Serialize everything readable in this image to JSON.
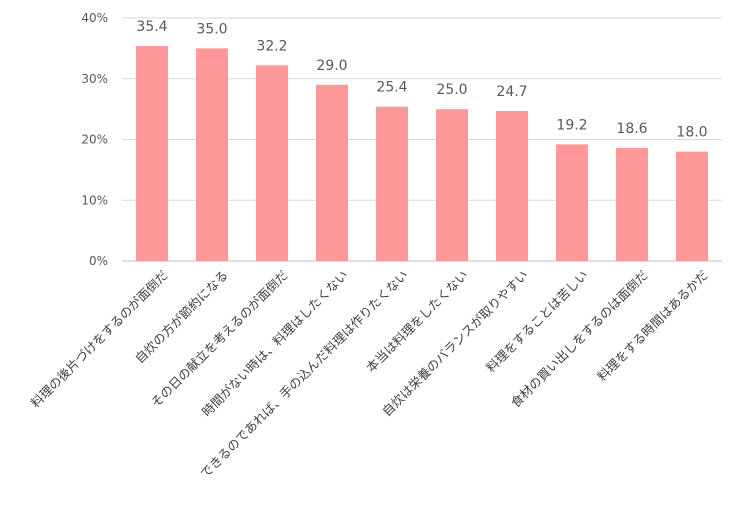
{
  "chart_data": {
    "type": "bar",
    "categories": [
      "料理の後片づけをするのが面倒だ",
      "自炊の方が節約になる",
      "その日の献立を考えるのが面倒だ",
      "時間がない時は、料理はしたくない",
      "できるのであれば、手の込んだ料理は作りたくない",
      "本当は料理をしたくない",
      "自炊は栄養のバランスが取りやすい",
      "料理をすることは苦しい",
      "食材の買い出しをするのは面倒だ",
      "料理をする時間はあるかだ"
    ],
    "values": [
      35.4,
      35.0,
      32.2,
      29.0,
      25.4,
      25.0,
      24.7,
      19.2,
      18.6,
      18.0
    ],
    "value_labels": [
      "35.4",
      "35.0",
      "32.2",
      "29.0",
      "25.4",
      "25.0",
      "24.7",
      "19.2",
      "18.6",
      "18.0"
    ],
    "ylim": [
      0,
      40
    ],
    "y_ticks": [
      {
        "value": 0,
        "label": "0%"
      },
      {
        "value": 10,
        "label": "10%"
      },
      {
        "value": 20,
        "label": "20%"
      },
      {
        "value": 30,
        "label": "30%"
      },
      {
        "value": 40,
        "label": "40%"
      }
    ],
    "bar_color": "#ff9999",
    "grid": true,
    "legend": "none"
  }
}
